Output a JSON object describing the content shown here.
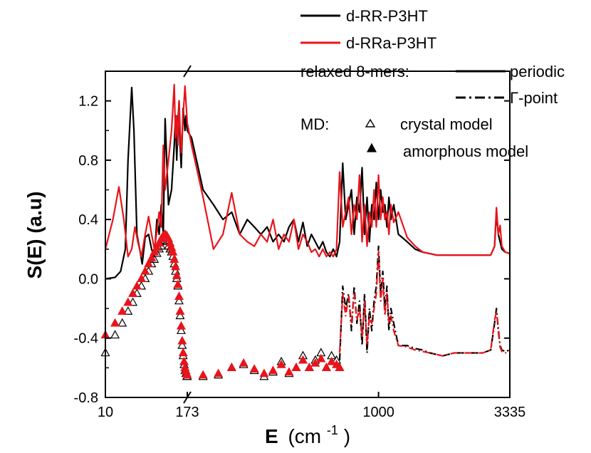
{
  "chart_data": {
    "type": "line",
    "title": "",
    "xlabel_main": "E",
    "xlabel_unit": "(cm",
    "xlabel_exp": "-1",
    "xlabel_close": ")",
    "ylabel": "S(E) (a.u)",
    "xaxis": {
      "note": "broken axis: segment 10-173 and segment 173-3335",
      "ticks": [
        {
          "label": "10",
          "value": 10
        },
        {
          "label": "173",
          "value": 173
        },
        {
          "label": "1000",
          "value": 1000
        },
        {
          "label": "3335",
          "value": 3335
        }
      ]
    },
    "yaxis": {
      "ylim": [
        -0.8,
        1.4
      ],
      "ticks": [
        {
          "label": "-0.8",
          "value": -0.8
        },
        {
          "label": "-0.4",
          "value": -0.4
        },
        {
          "label": "0.0",
          "value": 0.0
        },
        {
          "label": "0.4",
          "value": 0.4
        },
        {
          "label": "0.8",
          "value": 0.8
        },
        {
          "label": "1.2",
          "value": 1.2
        }
      ]
    },
    "series": [
      {
        "name": "d-RR-P3HT relaxed 8-mers periodic",
        "color": "#000000",
        "style": "solid",
        "x": [
          10,
          14,
          17,
          20,
          22,
          25,
          27,
          30,
          33,
          36,
          40,
          45,
          50,
          55,
          60,
          65,
          70,
          75,
          80,
          90,
          100,
          110,
          115,
          120,
          125,
          130,
          135,
          140,
          150,
          160,
          165,
          173,
          180,
          200,
          220,
          240,
          260,
          280,
          300,
          320,
          340,
          360,
          380,
          400,
          420,
          440,
          460,
          480,
          500,
          520,
          540,
          560,
          580,
          600,
          620,
          640,
          660,
          680,
          700,
          720,
          740,
          760,
          780,
          800,
          820,
          840,
          860,
          880,
          900,
          920,
          940,
          960,
          980,
          1000,
          1020,
          1040,
          1060,
          1080,
          1100,
          1120,
          1150,
          1200,
          1300,
          1400,
          1500,
          1600,
          1700,
          1800,
          2000,
          2200,
          2400,
          2600,
          2800,
          2900,
          2950,
          3000,
          3050,
          3100,
          3200,
          3335
        ],
        "y": [
          0.0,
          0.01,
          0.05,
          0.2,
          0.8,
          1.29,
          1.0,
          0.3,
          0.2,
          0.1,
          0.28,
          0.3,
          0.2,
          0.15,
          0.4,
          0.3,
          0.5,
          0.3,
          1.08,
          0.5,
          0.6,
          0.9,
          1.1,
          0.8,
          1.05,
          1.2,
          0.9,
          0.75,
          1.15,
          1.0,
          1.1,
          1.0,
          0.95,
          0.6,
          0.5,
          0.4,
          0.45,
          0.3,
          0.4,
          0.35,
          0.3,
          0.35,
          0.25,
          0.3,
          0.25,
          0.35,
          0.4,
          0.25,
          0.38,
          0.22,
          0.3,
          0.25,
          0.2,
          0.25,
          0.18,
          0.15,
          0.2,
          0.15,
          0.25,
          0.78,
          0.4,
          0.5,
          0.6,
          0.3,
          0.55,
          0.45,
          0.75,
          0.3,
          0.55,
          0.25,
          0.5,
          0.4,
          0.65,
          0.4,
          0.6,
          0.45,
          0.5,
          0.35,
          0.55,
          0.4,
          0.5,
          0.3,
          0.25,
          0.2,
          0.18,
          0.17,
          0.16,
          0.16,
          0.16,
          0.16,
          0.16,
          0.16,
          0.16,
          0.22,
          0.45,
          0.3,
          0.25,
          0.2,
          0.18,
          0.17
        ]
      },
      {
        "name": "d-RRa-P3HT relaxed 8-mers periodic",
        "color": "#e8141b",
        "style": "solid",
        "x": [
          10,
          13,
          16,
          19,
          22,
          25,
          28,
          31,
          35,
          40,
          45,
          50,
          55,
          60,
          65,
          70,
          75,
          80,
          90,
          100,
          110,
          115,
          120,
          125,
          130,
          135,
          140,
          150,
          160,
          165,
          173,
          180,
          200,
          220,
          240,
          260,
          280,
          300,
          320,
          340,
          360,
          380,
          400,
          420,
          440,
          460,
          480,
          500,
          520,
          540,
          560,
          580,
          600,
          620,
          640,
          660,
          680,
          700,
          720,
          740,
          760,
          780,
          800,
          820,
          840,
          860,
          880,
          900,
          920,
          940,
          960,
          980,
          1000,
          1020,
          1040,
          1060,
          1080,
          1100,
          1120,
          1150,
          1200,
          1300,
          1400,
          1500,
          1600,
          1700,
          1800,
          2000,
          2200,
          2400,
          2600,
          2800,
          2900,
          2950,
          3000,
          3050,
          3100,
          3200,
          3335
        ],
        "y": [
          0.2,
          0.4,
          0.62,
          0.4,
          0.15,
          0.2,
          0.35,
          0.25,
          0.15,
          0.3,
          0.42,
          0.3,
          0.2,
          0.32,
          0.45,
          0.35,
          0.9,
          0.6,
          0.8,
          1.0,
          1.31,
          0.95,
          1.1,
          0.9,
          1.2,
          1.0,
          0.85,
          1.1,
          1.3,
          1.2,
          1.05,
          0.9,
          0.55,
          0.2,
          0.3,
          0.58,
          0.3,
          0.25,
          0.22,
          0.3,
          0.25,
          0.4,
          0.2,
          0.3,
          0.25,
          0.4,
          0.2,
          0.3,
          0.25,
          0.18,
          0.2,
          0.15,
          0.2,
          0.15,
          0.18,
          0.15,
          0.2,
          0.72,
          0.35,
          0.45,
          0.55,
          0.3,
          0.5,
          0.4,
          0.7,
          0.25,
          0.5,
          0.22,
          0.45,
          0.35,
          0.6,
          0.35,
          0.7,
          0.4,
          0.55,
          0.4,
          0.45,
          0.3,
          0.5,
          0.38,
          0.45,
          0.28,
          0.22,
          0.18,
          0.17,
          0.16,
          0.16,
          0.16,
          0.16,
          0.16,
          0.16,
          0.16,
          0.22,
          0.48,
          0.3,
          0.36,
          0.22,
          0.18,
          0.17
        ]
      },
      {
        "name": "d-RR-P3HT relaxed 8-mers Gamma-point",
        "color": "#000000",
        "style": "dashdot",
        "x": [
          700,
          720,
          740,
          760,
          780,
          800,
          820,
          840,
          860,
          880,
          900,
          920,
          940,
          960,
          980,
          1000,
          1020,
          1040,
          1060,
          1080,
          1100,
          1120,
          1150,
          1200,
          1300,
          1400,
          1500,
          1600,
          1700,
          1800,
          2000,
          2200,
          2400,
          2600,
          2800,
          2900,
          2950,
          3000,
          3050,
          3100,
          3200,
          3335
        ],
        "y": [
          -0.55,
          -0.05,
          -0.2,
          -0.1,
          -0.35,
          -0.05,
          -0.3,
          -0.15,
          -0.45,
          -0.1,
          -0.5,
          -0.2,
          -0.35,
          -0.15,
          -0.05,
          0.22,
          -0.1,
          0.05,
          -0.2,
          -0.05,
          -0.35,
          -0.2,
          -0.3,
          -0.45,
          -0.45,
          -0.47,
          -0.48,
          -0.5,
          -0.51,
          -0.52,
          -0.5,
          -0.5,
          -0.5,
          -0.5,
          -0.48,
          -0.3,
          -0.2,
          -0.35,
          -0.45,
          -0.48,
          -0.49,
          -0.48
        ]
      },
      {
        "name": "d-RRa-P3HT relaxed 8-mers Gamma-point",
        "color": "#e8141b",
        "style": "dashdot",
        "x": [
          700,
          720,
          740,
          760,
          780,
          800,
          820,
          840,
          860,
          880,
          900,
          920,
          940,
          960,
          980,
          1000,
          1020,
          1040,
          1060,
          1080,
          1100,
          1120,
          1150,
          1200,
          1300,
          1400,
          1500,
          1600,
          1700,
          1800,
          2000,
          2200,
          2400,
          2600,
          2800,
          2900,
          2950,
          3000,
          3050,
          3100,
          3200,
          3335
        ],
        "y": [
          -0.5,
          -0.1,
          -0.25,
          -0.12,
          -0.3,
          -0.1,
          -0.28,
          -0.2,
          -0.4,
          -0.15,
          -0.45,
          -0.25,
          -0.3,
          -0.2,
          -0.1,
          0.18,
          -0.15,
          0.0,
          -0.25,
          -0.1,
          -0.3,
          -0.25,
          -0.35,
          -0.45,
          -0.46,
          -0.48,
          -0.49,
          -0.5,
          -0.51,
          -0.52,
          -0.5,
          -0.5,
          -0.5,
          -0.5,
          -0.48,
          -0.28,
          -0.22,
          -0.32,
          -0.46,
          -0.49,
          -0.5,
          -0.48
        ]
      },
      {
        "name": "d-RR-P3HT MD crystal model",
        "color": "#000000",
        "marker": "open-triangle",
        "x": [
          10,
          14,
          18,
          22,
          26,
          30,
          35,
          40,
          45,
          50,
          55,
          60,
          65,
          70,
          75,
          80,
          85,
          90,
          95,
          100,
          105,
          110,
          115,
          120,
          125,
          130,
          135,
          140,
          145,
          150,
          155,
          160,
          165,
          170,
          173,
          200,
          230,
          260,
          290,
          320,
          350,
          380,
          410,
          440,
          470,
          500,
          530,
          560,
          590,
          620,
          650,
          680,
          700
        ],
        "y": [
          -0.5,
          -0.38,
          -0.3,
          -0.22,
          -0.16,
          -0.1,
          -0.05,
          0.0,
          0.05,
          0.1,
          0.13,
          0.17,
          0.2,
          0.22,
          0.25,
          0.26,
          0.25,
          0.22,
          0.2,
          0.18,
          0.15,
          0.1,
          0.05,
          0.0,
          -0.05,
          -0.15,
          -0.25,
          -0.35,
          -0.45,
          -0.52,
          -0.58,
          -0.62,
          -0.64,
          -0.66,
          -0.66,
          -0.66,
          -0.65,
          -0.6,
          -0.58,
          -0.62,
          -0.66,
          -0.63,
          -0.56,
          -0.64,
          -0.6,
          -0.52,
          -0.6,
          -0.55,
          -0.5,
          -0.6,
          -0.52,
          -0.55,
          -0.6
        ]
      },
      {
        "name": "d-RRa-P3HT MD amorphous model",
        "color": "#e8141b",
        "marker": "filled-triangle",
        "x": [
          10,
          14,
          18,
          22,
          26,
          30,
          35,
          40,
          45,
          50,
          55,
          60,
          65,
          70,
          75,
          80,
          85,
          90,
          95,
          100,
          105,
          110,
          115,
          120,
          125,
          130,
          135,
          140,
          145,
          150,
          155,
          160,
          165,
          170,
          173,
          200,
          230,
          260,
          290,
          320,
          350,
          380,
          410,
          440,
          470,
          500,
          530,
          560,
          590,
          620,
          650,
          680,
          700
        ],
        "y": [
          -0.38,
          -0.3,
          -0.22,
          -0.16,
          -0.1,
          -0.05,
          0.0,
          0.05,
          0.1,
          0.14,
          0.18,
          0.21,
          0.24,
          0.27,
          0.29,
          0.3,
          0.29,
          0.27,
          0.24,
          0.21,
          0.18,
          0.13,
          0.08,
          0.02,
          -0.04,
          -0.12,
          -0.22,
          -0.32,
          -0.42,
          -0.5,
          -0.56,
          -0.6,
          -0.62,
          -0.64,
          -0.65,
          -0.65,
          -0.64,
          -0.6,
          -0.57,
          -0.61,
          -0.64,
          -0.62,
          -0.58,
          -0.63,
          -0.6,
          -0.55,
          -0.6,
          -0.57,
          -0.54,
          -0.6,
          -0.56,
          -0.58,
          -0.6
        ]
      }
    ],
    "legend": {
      "placement": "top-right",
      "rr_label": "d-RR-P3HT",
      "rra_label": "d-RRa-P3HT",
      "relaxed_label": "relaxed 8-mers:",
      "periodic_label": "periodic",
      "gamma_label": "Γ-point",
      "md_label": "MD:",
      "crystal_label": "crystal model",
      "amorphous_label": "amorphous model"
    }
  }
}
